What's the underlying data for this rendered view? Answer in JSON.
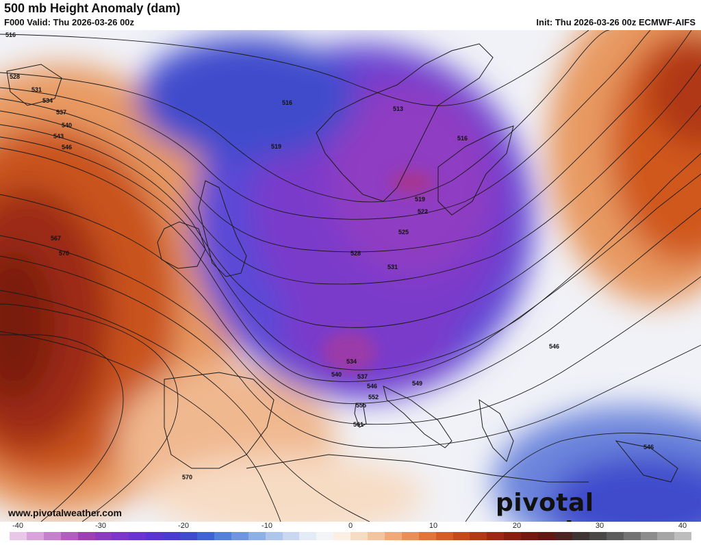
{
  "header": {
    "title": "500 mb Height Anomaly (dam)",
    "valid": "F000 Valid: Thu 2026-03-26 00z",
    "init": "Init: Thu 2026-03-26 00z ECMWF-AIFS"
  },
  "footer": {
    "website": "www.pivotalweather.com",
    "brand": "pivotal weather"
  },
  "colorbar": {
    "ticks": [
      "-40",
      "-30",
      "-20",
      "-10",
      "0",
      "10",
      "20",
      "30",
      "40"
    ],
    "colors": [
      "#e9c7e8",
      "#d8a3da",
      "#c681cc",
      "#b05fbd",
      "#9b42b0",
      "#8c3bbf",
      "#7b38c8",
      "#6a36cf",
      "#5a35d3",
      "#4a3ccf",
      "#3f4ccc",
      "#3f63d0",
      "#5380d8",
      "#7097de",
      "#8fb0e3",
      "#adc6ea",
      "#c9d8f0",
      "#e3ebf6",
      "#f3f4f8",
      "#fbefe4",
      "#f7dcc4",
      "#f3c4a0",
      "#eeaa7b",
      "#e88f59",
      "#df753d",
      "#d35d28",
      "#c34a1d",
      "#b03917",
      "#9c2914",
      "#882010",
      "#731b11",
      "#5e1a13",
      "#4c2421",
      "#3e3534",
      "#4a4747",
      "#5d5c5c",
      "#737373",
      "#8c8c8c",
      "#a5a5a5",
      "#bdbdbd"
    ]
  },
  "map": {
    "contour_labels": [
      "516",
      "528",
      "531",
      "534",
      "537",
      "540",
      "543",
      "546",
      "567",
      "570",
      "516",
      "519",
      "513",
      "516",
      "519",
      "522",
      "525",
      "528",
      "531",
      "534",
      "537",
      "540",
      "546",
      "549",
      "552",
      "555",
      "561",
      "546",
      "546",
      "570"
    ]
  }
}
